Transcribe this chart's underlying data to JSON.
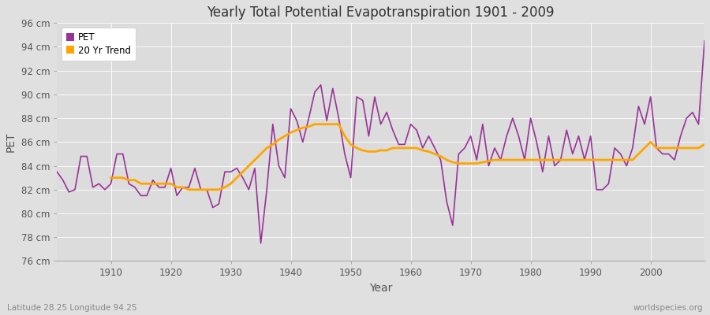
{
  "title": "Yearly Total Potential Evapotranspiration 1901 - 2009",
  "xlabel": "Year",
  "ylabel": "PET",
  "subtitle_left": "Latitude 28.25 Longitude 94.25",
  "subtitle_right": "worldspecies.org",
  "ylim": [
    76,
    96
  ],
  "xlim": [
    1901,
    2009
  ],
  "ytick_labels": [
    "76 cm",
    "78 cm",
    "80 cm",
    "82 cm",
    "84 cm",
    "86 cm",
    "88 cm",
    "90 cm",
    "92 cm",
    "94 cm",
    "96 cm"
  ],
  "ytick_values": [
    76,
    78,
    80,
    82,
    84,
    86,
    88,
    90,
    92,
    94,
    96
  ],
  "xtick_values": [
    1910,
    1920,
    1930,
    1940,
    1950,
    1960,
    1970,
    1980,
    1990,
    2000
  ],
  "pet_color": "#993399",
  "trend_color": "#FFA500",
  "fig_bg_color": "#E0E0E0",
  "plot_bg_color": "#DCDCDC",
  "grid_color": "#FFFFFF",
  "legend_entries": [
    "PET",
    "20 Yr Trend"
  ],
  "years": [
    1901,
    1902,
    1903,
    1904,
    1905,
    1906,
    1907,
    1908,
    1909,
    1910,
    1911,
    1912,
    1913,
    1914,
    1915,
    1916,
    1917,
    1918,
    1919,
    1920,
    1921,
    1922,
    1923,
    1924,
    1925,
    1926,
    1927,
    1928,
    1929,
    1930,
    1931,
    1932,
    1933,
    1934,
    1935,
    1936,
    1937,
    1938,
    1939,
    1940,
    1941,
    1942,
    1943,
    1944,
    1945,
    1946,
    1947,
    1948,
    1949,
    1950,
    1951,
    1952,
    1953,
    1954,
    1955,
    1956,
    1957,
    1958,
    1959,
    1960,
    1961,
    1962,
    1963,
    1964,
    1965,
    1966,
    1967,
    1968,
    1969,
    1970,
    1971,
    1972,
    1973,
    1974,
    1975,
    1976,
    1977,
    1978,
    1979,
    1980,
    1981,
    1982,
    1983,
    1984,
    1985,
    1986,
    1987,
    1988,
    1989,
    1990,
    1991,
    1992,
    1993,
    1994,
    1995,
    1996,
    1997,
    1998,
    1999,
    2000,
    2001,
    2002,
    2003,
    2004,
    2005,
    2006,
    2007,
    2008,
    2009
  ],
  "pet_values": [
    83.5,
    82.8,
    81.8,
    82.0,
    84.8,
    84.8,
    82.2,
    82.5,
    82.0,
    82.5,
    85.0,
    85.0,
    82.5,
    82.2,
    81.5,
    81.5,
    82.8,
    82.2,
    82.2,
    83.8,
    81.5,
    82.2,
    82.2,
    83.8,
    82.0,
    82.0,
    80.5,
    80.8,
    83.5,
    83.5,
    83.8,
    83.0,
    82.0,
    83.8,
    77.5,
    82.0,
    87.5,
    84.0,
    83.0,
    88.8,
    87.8,
    86.0,
    88.0,
    90.2,
    90.8,
    87.8,
    90.5,
    88.0,
    85.0,
    83.0,
    89.8,
    89.5,
    86.5,
    89.8,
    87.5,
    88.5,
    87.0,
    85.8,
    85.8,
    87.5,
    87.0,
    85.5,
    86.5,
    85.5,
    84.5,
    81.0,
    79.0,
    85.0,
    85.5,
    86.5,
    84.5,
    87.5,
    84.0,
    85.5,
    84.5,
    86.5,
    88.0,
    86.5,
    84.5,
    88.0,
    86.0,
    83.5,
    86.5,
    84.0,
    84.5,
    87.0,
    85.0,
    86.5,
    84.5,
    86.5,
    82.0,
    82.0,
    82.5,
    85.5,
    85.0,
    84.0,
    85.5,
    89.0,
    87.5,
    89.8,
    85.5,
    85.0,
    85.0,
    84.5,
    86.5,
    88.0,
    88.5,
    87.5,
    94.5
  ],
  "trend_values": [
    null,
    null,
    null,
    null,
    null,
    null,
    null,
    null,
    null,
    83.0,
    83.0,
    83.0,
    82.8,
    82.8,
    82.5,
    82.5,
    82.5,
    82.5,
    82.5,
    82.5,
    82.2,
    82.2,
    82.0,
    82.0,
    82.0,
    82.0,
    82.0,
    82.0,
    82.2,
    82.5,
    83.0,
    83.5,
    84.0,
    84.5,
    85.0,
    85.5,
    85.8,
    86.2,
    86.5,
    86.8,
    87.0,
    87.2,
    87.3,
    87.5,
    87.5,
    87.5,
    87.5,
    87.5,
    86.5,
    85.8,
    85.5,
    85.3,
    85.2,
    85.2,
    85.3,
    85.3,
    85.5,
    85.5,
    85.5,
    85.5,
    85.5,
    85.3,
    85.2,
    85.0,
    84.8,
    84.5,
    84.3,
    84.2,
    84.2,
    84.2,
    84.2,
    84.3,
    84.4,
    84.5,
    84.5,
    84.5,
    84.5,
    84.5,
    84.5,
    84.5,
    84.5,
    84.5,
    84.5,
    84.5,
    84.5,
    84.5,
    84.5,
    84.5,
    84.5,
    84.5,
    84.5,
    84.5,
    84.5,
    84.5,
    84.5,
    84.5,
    84.5,
    85.0,
    85.5,
    86.0,
    85.5,
    85.5,
    85.5,
    85.5,
    85.5,
    85.5,
    85.5,
    85.5,
    85.8
  ]
}
